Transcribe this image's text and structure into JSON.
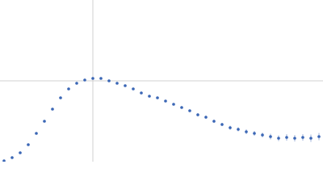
{
  "chart_data": {
    "type": "scatter",
    "color": "#3a66b5",
    "grid": true,
    "xlim": [
      0,
      4
    ],
    "ylim": [
      0,
      2
    ],
    "xticks": [
      1.15
    ],
    "yticks": [
      1
    ],
    "x": [
      0.05,
      0.15,
      0.25,
      0.35,
      0.45,
      0.55,
      0.65,
      0.75,
      0.85,
      0.95,
      1.05,
      1.15,
      1.25,
      1.35,
      1.45,
      1.55,
      1.65,
      1.75,
      1.85,
      1.95,
      2.05,
      2.15,
      2.25,
      2.35,
      2.45,
      2.55,
      2.65,
      2.75,
      2.85,
      2.95,
      3.05,
      3.15,
      3.25,
      3.35,
      3.45,
      3.55,
      3.65,
      3.75,
      3.85,
      3.95
    ],
    "values": [
      0.01,
      0.05,
      0.11,
      0.21,
      0.35,
      0.5,
      0.65,
      0.79,
      0.9,
      0.97,
      1.01,
      1.03,
      1.03,
      1.0,
      0.97,
      0.94,
      0.9,
      0.85,
      0.81,
      0.79,
      0.75,
      0.71,
      0.67,
      0.63,
      0.58,
      0.55,
      0.5,
      0.46,
      0.42,
      0.4,
      0.37,
      0.35,
      0.33,
      0.31,
      0.29,
      0.3,
      0.29,
      0.3,
      0.29,
      0.31
    ],
    "errors": [
      0.005,
      0.005,
      0.005,
      0.005,
      0.005,
      0.005,
      0.005,
      0.005,
      0.005,
      0.005,
      0.01,
      0.01,
      0.01,
      0.01,
      0.01,
      0.01,
      0.01,
      0.01,
      0.01,
      0.01,
      0.01,
      0.015,
      0.015,
      0.015,
      0.02,
      0.02,
      0.02,
      0.02,
      0.025,
      0.025,
      0.03,
      0.03,
      0.03,
      0.035,
      0.035,
      0.04,
      0.04,
      0.04,
      0.045,
      0.045
    ]
  }
}
